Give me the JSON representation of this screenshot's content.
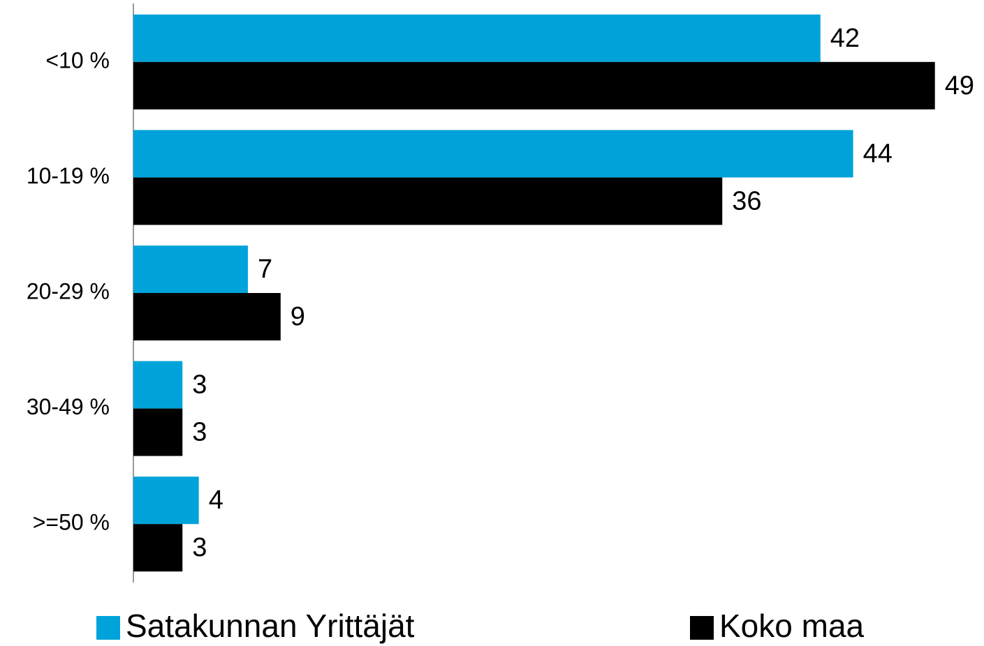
{
  "chart_data": {
    "type": "hbar",
    "categories": [
      "<10 %",
      "10-19 %",
      "20-29 %",
      "30-49 %",
      ">=50 %"
    ],
    "series": [
      {
        "name": "Satakunnan Yrittäjät",
        "color": "#00a3d9",
        "values": [
          42,
          44,
          7,
          3,
          4
        ]
      },
      {
        "name": "Koko maa",
        "color": "#000000",
        "values": [
          49,
          36,
          9,
          3,
          3
        ]
      }
    ],
    "xlim": [
      0,
      52
    ]
  }
}
